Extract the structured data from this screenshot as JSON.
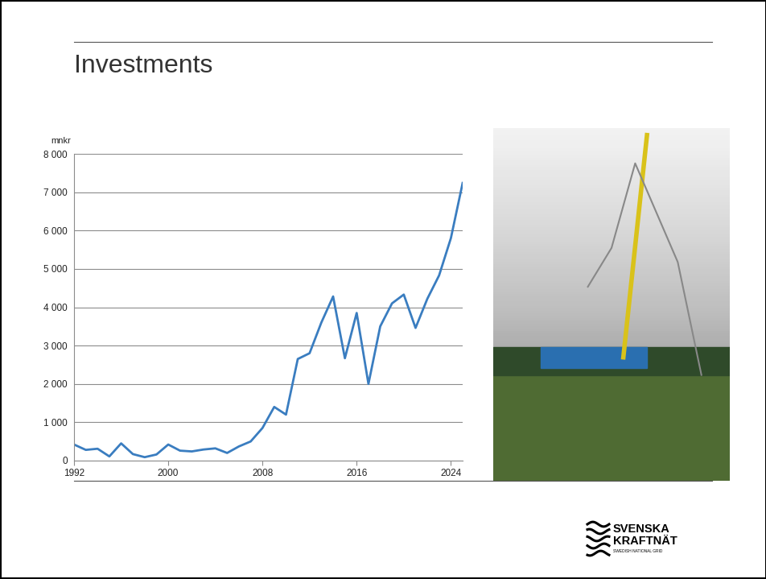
{
  "chart_data": {
    "type": "line",
    "title": "Investments",
    "y_label": "mnkr",
    "x": [
      1992,
      1993,
      1994,
      1995,
      1996,
      1997,
      1998,
      1999,
      2000,
      2001,
      2002,
      2003,
      2004,
      2005,
      2006,
      2007,
      2008,
      2009,
      2010,
      2011,
      2012,
      2013,
      2014,
      2015,
      2016,
      2017,
      2018,
      2019,
      2020,
      2021,
      2022,
      2023,
      2024,
      2025
    ],
    "values": [
      420,
      280,
      310,
      110,
      450,
      170,
      90,
      160,
      420,
      260,
      240,
      290,
      320,
      200,
      370,
      500,
      850,
      1400,
      1200,
      2650,
      2800,
      3600,
      4280,
      2670,
      3850,
      2000,
      3500,
      4100,
      4330,
      3460,
      4220,
      4830,
      5800,
      7240
    ],
    "color": "#3a7dc0",
    "xlim": [
      1992,
      2025
    ],
    "xticks": [
      1992,
      2000,
      2008,
      2016,
      2024
    ],
    "ylim": [
      0,
      8000
    ],
    "yticks": [
      0,
      {
        "value": 1000,
        "label": "1 000"
      },
      {
        "value": 2000,
        "label": "2 000"
      },
      {
        "value": 3000,
        "label": "3 000"
      },
      {
        "value": 4000,
        "label": "4 000"
      },
      {
        "value": 5000,
        "label": "5 000"
      },
      {
        "value": 6000,
        "label": "6 000"
      },
      {
        "value": 7000,
        "label": "7 000"
      },
      {
        "value": 8000,
        "label": "8 000"
      }
    ],
    "grid": true
  },
  "logo": {
    "name": [
      "SVENSKA",
      "KRAFTNÄT"
    ],
    "tagline": "SWEDISH NATIONAL GRID"
  }
}
